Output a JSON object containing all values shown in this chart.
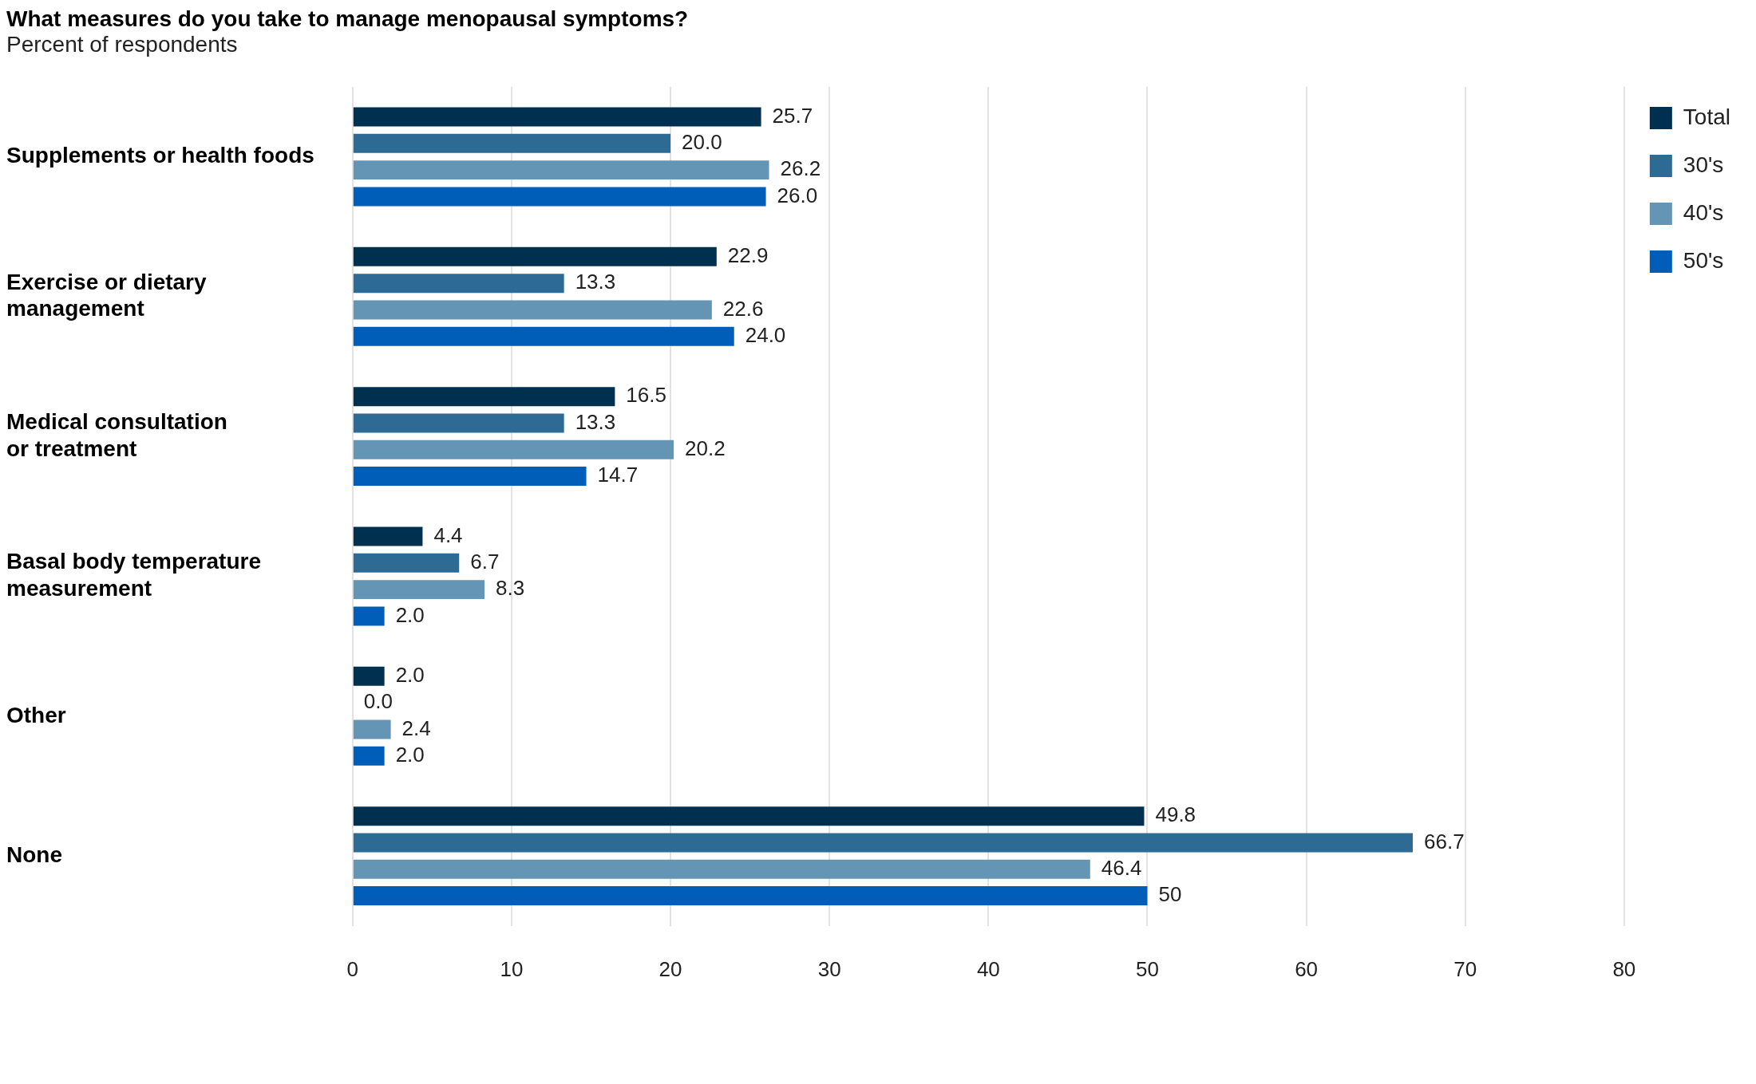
{
  "chart_data": {
    "type": "bar",
    "orientation": "horizontal",
    "title": "What measures do you take to manage menopausal symptoms?",
    "subtitle": "Percent of respondents",
    "categories": [
      "Supplements or health foods",
      "Exercise or dietary\nmanagement",
      "Medical consultation\nor treatment",
      "Basal body temperature\nmeasurement",
      "Other",
      "None"
    ],
    "series": [
      {
        "name": "Total",
        "color": "#003050",
        "values": [
          25.7,
          22.9,
          16.5,
          4.4,
          2.0,
          49.8
        ],
        "value_labels": [
          "25.7",
          "22.9",
          "16.5",
          "4.4",
          "2.0",
          "49.8"
        ]
      },
      {
        "name": "30's",
        "color": "#2e6b94",
        "values": [
          20.0,
          13.3,
          13.3,
          6.7,
          0.0,
          66.7
        ],
        "value_labels": [
          "20.0",
          "13.3",
          "13.3",
          "6.7",
          "0.0",
          "66.7"
        ]
      },
      {
        "name": "40's",
        "color": "#6495b4",
        "values": [
          26.2,
          22.6,
          20.2,
          8.3,
          2.4,
          46.4
        ],
        "value_labels": [
          "26.2",
          "22.6",
          "20.2",
          "8.3",
          "2.4",
          "46.4"
        ]
      },
      {
        "name": "50's",
        "color": "#005eb8",
        "values": [
          26.0,
          24.0,
          14.7,
          2.0,
          2.0,
          50
        ],
        "value_labels": [
          "26.0",
          "24.0",
          "14.7",
          "2.0",
          "2.0",
          "50"
        ]
      }
    ],
    "xlim": [
      0,
      80
    ],
    "xticks": [
      0,
      10,
      20,
      30,
      40,
      50,
      60,
      70,
      80
    ],
    "grid": "x",
    "legend": "top right"
  }
}
